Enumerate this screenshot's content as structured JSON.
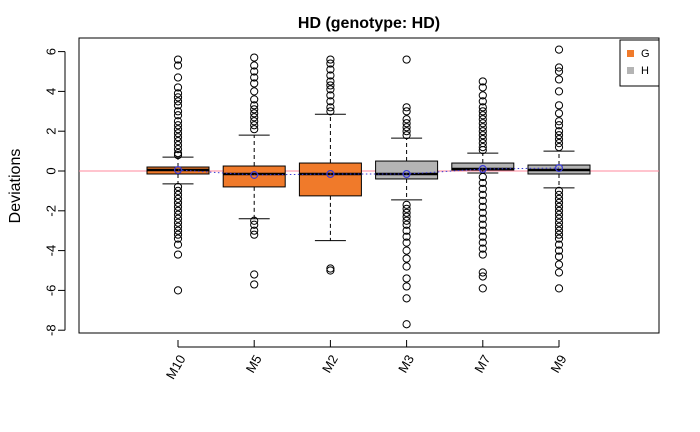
{
  "chart_data": {
    "type": "boxplot",
    "title": "HD (genotype: HD)",
    "xlabel": "",
    "ylabel": "Deviations",
    "ylim": [
      -8,
      6.5
    ],
    "yticks": [
      -8,
      -6,
      -4,
      -2,
      0,
      2,
      4,
      6
    ],
    "reference_line": {
      "y": 0,
      "color": "#ff8a9c"
    },
    "mean_line": {
      "color": "#3b3bd6",
      "style": "dotted"
    },
    "categories": [
      "M10",
      "M5",
      "M2",
      "M3",
      "M7",
      "M9"
    ],
    "legend": {
      "position": "top-right",
      "entries": [
        {
          "label": "G",
          "color": "#f07a2a"
        },
        {
          "label": "H",
          "color": "#b4b4b4"
        }
      ]
    },
    "boxes": [
      {
        "name": "M10",
        "group": "G",
        "whisker_low": -0.65,
        "q1": -0.15,
        "median": 0.05,
        "q3": 0.2,
        "whisker_high": 0.7,
        "mean": 0.05,
        "outliers": [
          5.6,
          5.3,
          4.7,
          4.2,
          3.9,
          3.7,
          3.5,
          3.3,
          3.0,
          2.8,
          2.5,
          2.3,
          2.1,
          1.9,
          1.7,
          1.5,
          1.3,
          1.1,
          0.9,
          0.8,
          -0.8,
          -1.0,
          -1.2,
          -1.4,
          -1.6,
          -1.8,
          -2.0,
          -2.2,
          -2.4,
          -2.6,
          -2.8,
          -3.0,
          -3.2,
          -3.4,
          -3.7,
          -4.2,
          -6.0
        ]
      },
      {
        "name": "M5",
        "group": "G",
        "whisker_low": -2.4,
        "q1": -0.8,
        "median": -0.15,
        "q3": 0.25,
        "whisker_high": 1.8,
        "mean": -0.2,
        "outliers": [
          5.7,
          5.3,
          5.0,
          4.7,
          4.4,
          4.0,
          3.6,
          3.3,
          3.1,
          2.9,
          2.7,
          2.5,
          2.3,
          2.1,
          -2.5,
          -2.7,
          -3.0,
          -3.2,
          -5.2,
          -5.7
        ]
      },
      {
        "name": "M2",
        "group": "G",
        "whisker_low": -3.5,
        "q1": -1.25,
        "median": -0.15,
        "q3": 0.4,
        "whisker_high": 2.85,
        "mean": -0.15,
        "outliers": [
          5.6,
          5.4,
          5.1,
          4.8,
          4.5,
          4.3,
          4.1,
          3.8,
          3.5,
          3.2,
          3.0,
          -4.9,
          -5.0
        ]
      },
      {
        "name": "M3",
        "group": "H",
        "whisker_low": -1.45,
        "q1": -0.4,
        "median": -0.15,
        "q3": 0.5,
        "whisker_high": 1.65,
        "mean": -0.15,
        "outliers": [
          5.6,
          3.2,
          3.0,
          2.6,
          2.4,
          2.2,
          2.0,
          1.8,
          -1.7,
          -1.9,
          -2.1,
          -2.3,
          -2.5,
          -2.7,
          -3.0,
          -3.3,
          -3.6,
          -4.0,
          -4.4,
          -4.8,
          -5.4,
          -5.8,
          -6.4,
          -7.7
        ]
      },
      {
        "name": "M7",
        "group": "H",
        "whisker_low": -0.1,
        "q1": 0.05,
        "median": 0.1,
        "q3": 0.4,
        "whisker_high": 0.9,
        "mean": 0.1,
        "outliers": [
          4.5,
          4.2,
          3.8,
          3.5,
          3.2,
          3.0,
          2.8,
          2.6,
          2.4,
          2.2,
          2.0,
          1.8,
          1.6,
          1.4,
          1.2,
          1.05,
          -0.3,
          -0.6,
          -0.9,
          -1.2,
          -1.5,
          -1.8,
          -2.1,
          -2.4,
          -2.7,
          -3.0,
          -3.3,
          -3.6,
          -3.9,
          -4.2,
          -5.1,
          -5.3,
          -5.9
        ]
      },
      {
        "name": "M9",
        "group": "H",
        "whisker_low": -0.85,
        "q1": -0.15,
        "median": 0.05,
        "q3": 0.3,
        "whisker_high": 1.0,
        "mean": 0.15,
        "outliers": [
          6.1,
          5.2,
          5.0,
          4.6,
          4.0,
          3.3,
          2.9,
          2.5,
          2.3,
          2.0,
          1.8,
          1.6,
          1.4,
          1.2,
          -1.0,
          -1.2,
          -1.4,
          -1.6,
          -1.8,
          -2.0,
          -2.2,
          -2.4,
          -2.6,
          -2.8,
          -3.0,
          -3.2,
          -3.4,
          -3.7,
          -4.0,
          -4.3,
          -4.7,
          -5.1,
          -5.9
        ]
      }
    ]
  }
}
